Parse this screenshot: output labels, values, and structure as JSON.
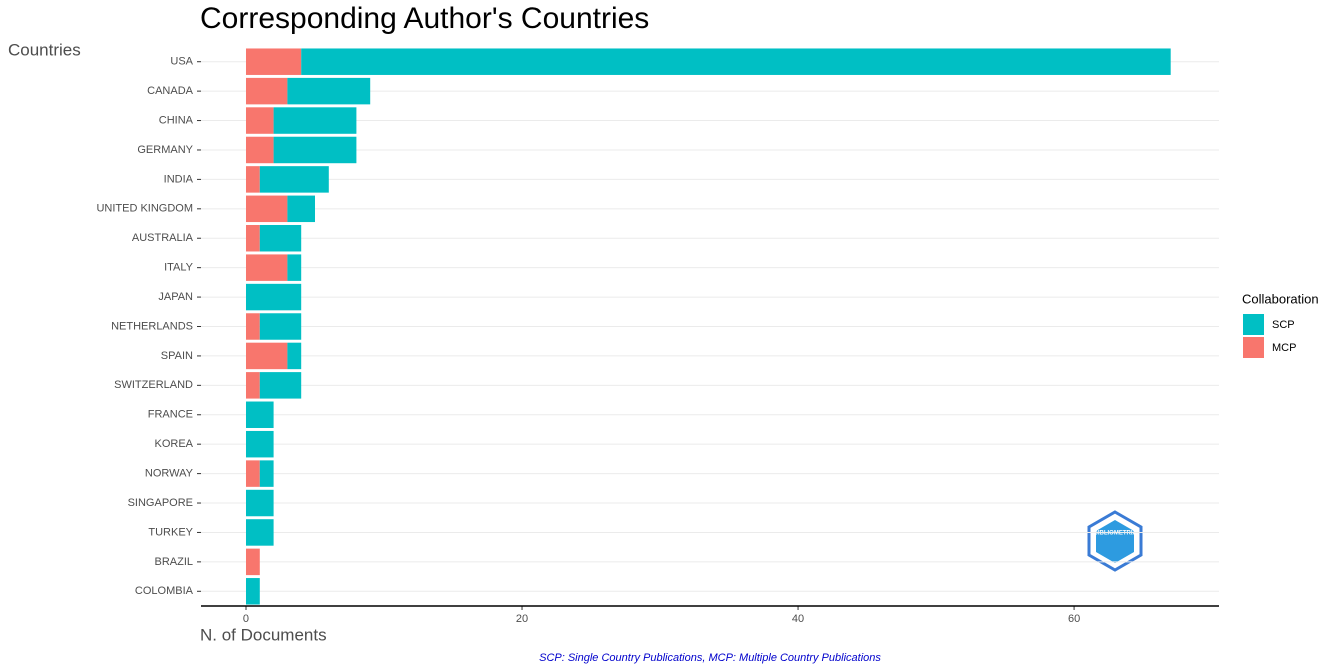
{
  "chart_data": {
    "type": "stacked-barh",
    "title": "Corresponding Author's Countries",
    "y_label": "Countries",
    "x_label": "N. of Documents",
    "caption": "SCP: Single Country Publications, MCP: Multiple Country Publications",
    "legend_title": "Collaboration",
    "logo_text": "BIBLIOMETRIX",
    "categories": [
      "USA",
      "CANADA",
      "CHINA",
      "GERMANY",
      "INDIA",
      "UNITED KINGDOM",
      "AUSTRALIA",
      "ITALY",
      "JAPAN",
      "NETHERLANDS",
      "SPAIN",
      "SWITZERLAND",
      "FRANCE",
      "KOREA",
      "NORWAY",
      "SINGAPORE",
      "TURKEY",
      "BRAZIL",
      "COLOMBIA"
    ],
    "series": [
      {
        "name": "SCP",
        "color": "#00bfc4",
        "values": [
          63,
          6,
          6,
          6,
          5,
          2,
          3,
          1,
          4,
          3,
          1,
          3,
          2,
          2,
          1,
          2,
          2,
          0,
          1
        ]
      },
      {
        "name": "MCP",
        "color": "#f8766d",
        "values": [
          4,
          3,
          2,
          2,
          1,
          3,
          1,
          3,
          0,
          1,
          3,
          1,
          0,
          0,
          1,
          0,
          0,
          1,
          0
        ]
      }
    ],
    "xlim": [
      -3.26,
      70.5
    ],
    "xticks": [
      0,
      20,
      40,
      60
    ],
    "grid": true,
    "legend": "right"
  }
}
